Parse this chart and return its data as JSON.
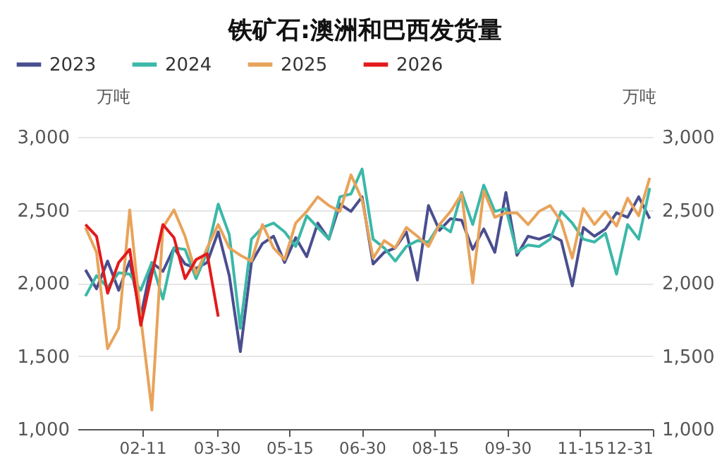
{
  "chart_data": {
    "type": "line",
    "title": "铁矿石:澳洲和巴西发货量",
    "ylabel": "万吨",
    "y2label": "万吨",
    "x": [
      "--01-06",
      "--01-13",
      "--01-20",
      "--01-27",
      "--02-03",
      "--02-10",
      "--02-17",
      "--02-24",
      "--03-03",
      "--03-10",
      "--03-17",
      "--03-24",
      "--03-31",
      "--04-07",
      "--04-14",
      "--04-21",
      "--04-28",
      "--05-05",
      "--05-12",
      "--05-19",
      "--05-26",
      "--06-02",
      "--06-09",
      "--06-16",
      "--06-23",
      "--06-30",
      "--07-07",
      "--07-14",
      "--07-21",
      "--07-28",
      "--08-04",
      "--08-11",
      "--08-18",
      "--08-25",
      "--09-01",
      "--09-08",
      "--09-15",
      "--09-22",
      "--09-29",
      "--10-06",
      "--10-13",
      "--10-20",
      "--10-27",
      "--11-03",
      "--11-10",
      "--11-17",
      "--11-24",
      "--12-01",
      "--12-08",
      "--12-15",
      "--12-22",
      "--12-29"
    ],
    "series": [
      {
        "name": "2023",
        "color": "#4a4e8f",
        "values": [
          2090,
          1960,
          2150,
          1950,
          2150,
          1770,
          2140,
          2080,
          2240,
          2130,
          2100,
          2140,
          2350,
          2050,
          1530,
          2140,
          2270,
          2320,
          2140,
          2310,
          2180,
          2410,
          2300,
          2540,
          2490,
          2590,
          2130,
          2210,
          2240,
          2350,
          2020,
          2530,
          2360,
          2440,
          2430,
          2230,
          2370,
          2210,
          2620,
          2190,
          2320,
          2300,
          2330,
          2290,
          1980,
          2380,
          2320,
          2370,
          2480,
          2450,
          2590,
          2440
        ]
      },
      {
        "name": "2024",
        "color": "#3bb8a8",
        "values": [
          1910,
          2050,
          1970,
          2070,
          2060,
          1950,
          2140,
          1890,
          2240,
          2230,
          2030,
          2210,
          2540,
          2330,
          1690,
          2300,
          2380,
          2410,
          2350,
          2250,
          2460,
          2380,
          2300,
          2590,
          2610,
          2780,
          2300,
          2240,
          2150,
          2250,
          2290,
          2280,
          2400,
          2350,
          2620,
          2400,
          2670,
          2490,
          2510,
          2210,
          2260,
          2250,
          2300,
          2490,
          2410,
          2300,
          2280,
          2340,
          2060,
          2400,
          2300,
          2650
        ]
      },
      {
        "name": "2025",
        "color": "#e8a35a",
        "values": [
          2380,
          2210,
          1550,
          1690,
          2500,
          1760,
          1130,
          2380,
          2500,
          2320,
          2060,
          2240,
          2400,
          2240,
          2190,
          2150,
          2400,
          2240,
          2160,
          2410,
          2490,
          2590,
          2530,
          2490,
          2740,
          2570,
          2170,
          2290,
          2240,
          2380,
          2320,
          2250,
          2400,
          2490,
          2610,
          2000,
          2630,
          2450,
          2480,
          2480,
          2400,
          2490,
          2530,
          2420,
          2170,
          2510,
          2400,
          2490,
          2390,
          2580,
          2460,
          2720
        ]
      },
      {
        "name": "2026",
        "color": "#e31a1c",
        "x": [
          "--01-06",
          "--01-13",
          "--01-20",
          "--01-27",
          "--02-03",
          "--02-10",
          "--02-17",
          "--02-24",
          "--03-03",
          "--03-10",
          "--03-17",
          "--03-24",
          "--03-31"
        ],
        "values": [
          2400,
          2320,
          1930,
          2140,
          2230,
          1710,
          2060,
          2400,
          2310,
          2030,
          2160,
          2200,
          1770
        ]
      }
    ],
    "xlim": [
      "--01-01",
      "--12-31"
    ],
    "xticks": [
      {
        "value": "--02-11",
        "label": "02-11"
      },
      {
        "value": "--03-30",
        "label": "03-30"
      },
      {
        "value": "--05-15",
        "label": "05-15"
      },
      {
        "value": "--06-30",
        "label": "06-30"
      },
      {
        "value": "--08-15",
        "label": "08-15"
      },
      {
        "value": "--09-30",
        "label": "09-30"
      },
      {
        "value": "--11-15",
        "label": "11-15"
      },
      {
        "value": "--12-31",
        "label": "12-31"
      }
    ],
    "ylim": [
      1000,
      3000
    ],
    "yticks": [
      {
        "value": 1000,
        "label": "1,000"
      },
      {
        "value": 1500,
        "label": "1,500"
      },
      {
        "value": 2000,
        "label": "2,000"
      },
      {
        "value": 2500,
        "label": "2,500"
      },
      {
        "value": 3000,
        "label": "3,000"
      }
    ],
    "y2lim": [
      1000,
      3000
    ],
    "y2ticks": [
      {
        "value": 1000,
        "label": "1,000"
      },
      {
        "value": 1500,
        "label": "1,500"
      },
      {
        "value": 2000,
        "label": "2,000"
      },
      {
        "value": 2500,
        "label": "2,500"
      },
      {
        "value": 3000,
        "label": "3,000"
      }
    ],
    "grid": "y",
    "legend": "top left",
    "line_style": "solid",
    "marker": "none"
  }
}
